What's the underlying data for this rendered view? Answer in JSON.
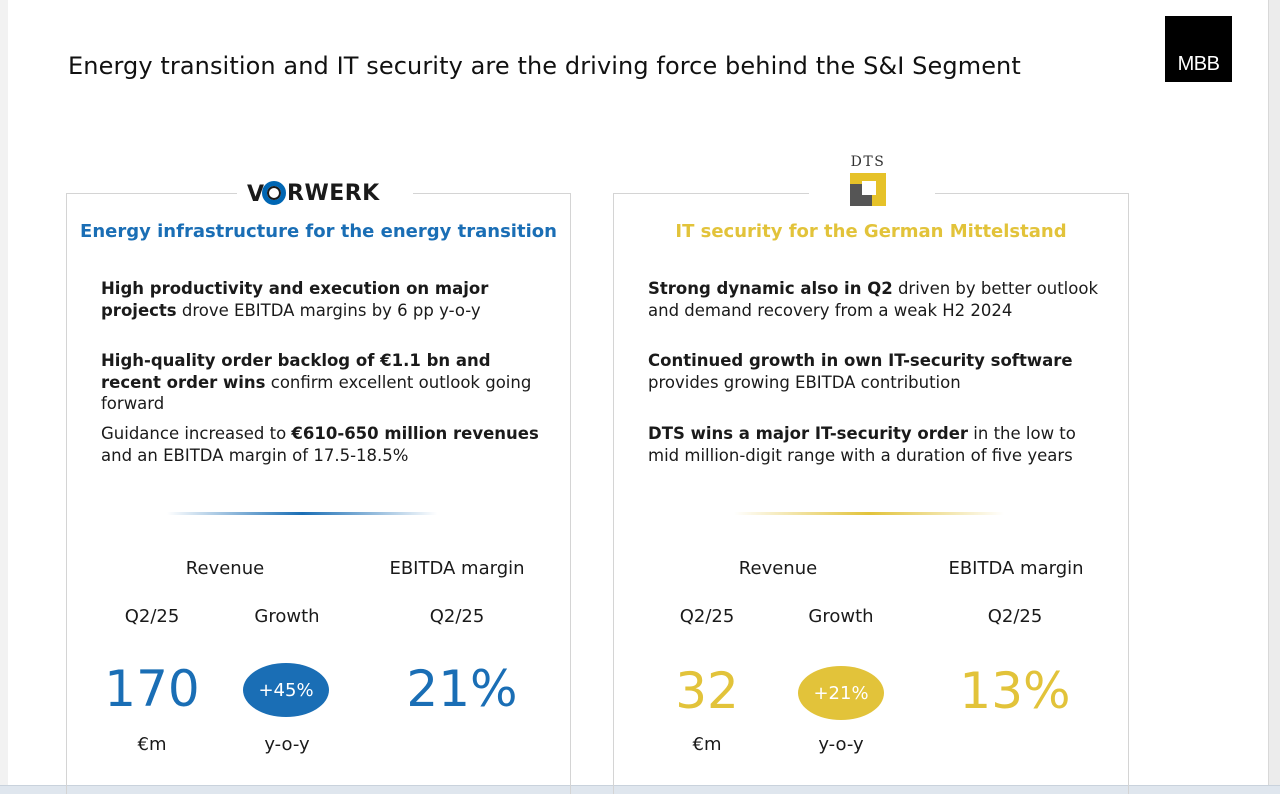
{
  "title": "Energy transition and IT security are the driving force behind the S&I Segment",
  "brand": {
    "logo_text": "MBB"
  },
  "colors": {
    "blue": "#1a6eb5",
    "gold": "#e2c33a"
  },
  "left": {
    "logo_text": "VORWERK",
    "logo_prefix": "V",
    "logo_suffix": "RWERK",
    "subtitle": "Energy infrastructure for the energy transition",
    "bullets": [
      {
        "bold": "High productivity and execution on major projects",
        "text": " drove EBITDA margins by 6 pp y-o-y"
      },
      {
        "bold": "High-quality order backlog of €1.1 bn and recent order wins",
        "text": " confirm excellent outlook going forward"
      },
      {
        "pre": "Guidance increased to ",
        "bold": "€610-650 million revenues",
        "text": " and an EBITDA margin of 17.5-18.5%"
      }
    ],
    "kpis": {
      "revenue_label": "Revenue",
      "ebitda_label": "EBITDA margin",
      "period_label": "Q2/25",
      "growth_label": "Growth",
      "revenue_value": "170",
      "revenue_unit": "€m",
      "growth_value": "+45%",
      "growth_unit": "y-o-y",
      "ebitda_period": "Q2/25",
      "ebitda_value": "21%"
    }
  },
  "right": {
    "logo_text": "DTS",
    "subtitle": "IT security for the German Mittelstand",
    "bullets": [
      {
        "bold": "Strong dynamic also in Q2",
        "text": " driven by better outlook and demand recovery from a weak H2 2024"
      },
      {
        "bold": "Continued growth in own IT-security software",
        "text": " provides growing EBITDA contribution"
      },
      {
        "bold": "DTS wins a major IT-security order",
        "text": " in the low to mid million-digit range with a duration of five years"
      }
    ],
    "kpis": {
      "revenue_label": "Revenue",
      "ebitda_label": "EBITDA margin",
      "period_label": "Q2/25",
      "growth_label": "Growth",
      "revenue_value": "32",
      "revenue_unit": "€m",
      "growth_value": "+21%",
      "growth_unit": "y-o-y",
      "ebitda_period": "Q2/25",
      "ebitda_value": "13%"
    }
  }
}
